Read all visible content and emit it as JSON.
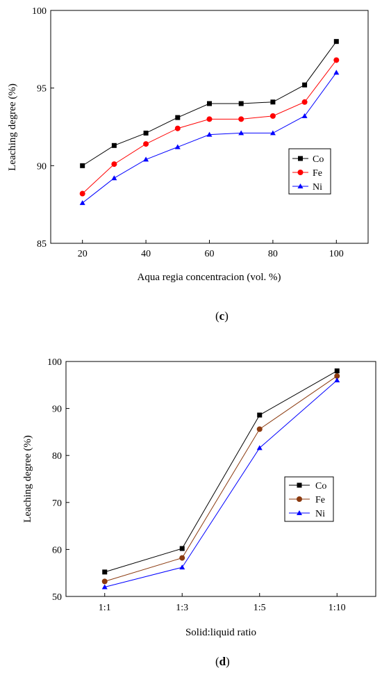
{
  "chart_data": [
    {
      "type": "line",
      "xlabel": "Aqua regia concentracion (vol. %)",
      "ylabel": "Leaching degree (%)",
      "x": [
        20,
        30,
        40,
        50,
        60,
        70,
        80,
        90,
        100
      ],
      "xticks": [
        "20",
        "40",
        "60",
        "80",
        "100"
      ],
      "xtick_values": [
        20,
        40,
        60,
        80,
        100
      ],
      "xlim": [
        10,
        110
      ],
      "ylim": [
        85,
        100
      ],
      "yticks": [
        "85",
        "90",
        "95",
        "100"
      ],
      "ytick_values": [
        85,
        90,
        95,
        100
      ],
      "grid": false,
      "legend_position": "right",
      "series": [
        {
          "name": "Co",
          "color": "#000000",
          "marker": "square",
          "values": [
            90.0,
            91.3,
            92.1,
            93.1,
            94.0,
            94.0,
            94.1,
            95.2,
            98.0
          ]
        },
        {
          "name": "Fe",
          "color": "#ff0000",
          "marker": "circle",
          "values": [
            88.2,
            90.1,
            91.4,
            92.4,
            93.0,
            93.0,
            93.2,
            94.1,
            96.8
          ]
        },
        {
          "name": "Ni",
          "color": "#0000ff",
          "marker": "triangle",
          "values": [
            87.6,
            89.2,
            90.4,
            91.2,
            92.0,
            92.1,
            92.1,
            93.2,
            96.0
          ]
        }
      ],
      "caption": {
        "open": "(",
        "letter": "c",
        "close": ")"
      }
    },
    {
      "type": "line",
      "xlabel": "Solid:liquid ratio",
      "ylabel": "Leaching degree (%)",
      "categories": [
        "1:1",
        "1:3",
        "1:5",
        "1:10"
      ],
      "ylim": [
        50,
        100
      ],
      "yticks": [
        "50",
        "60",
        "70",
        "80",
        "90",
        "100"
      ],
      "ytick_values": [
        50,
        60,
        70,
        80,
        90,
        100
      ],
      "grid": false,
      "legend_position": "right",
      "series": [
        {
          "name": "Co",
          "color": "#000000",
          "marker": "square",
          "values": [
            55.2,
            60.2,
            88.6,
            98.0
          ]
        },
        {
          "name": "Fe",
          "color": "#8b3a0f",
          "marker": "circle",
          "values": [
            53.2,
            58.2,
            85.6,
            96.9
          ]
        },
        {
          "name": "Ni",
          "color": "#0000ff",
          "marker": "triangle",
          "values": [
            52.0,
            56.2,
            81.6,
            96.0
          ]
        }
      ],
      "caption": {
        "open": "(",
        "letter": "d",
        "close": ")"
      }
    }
  ]
}
